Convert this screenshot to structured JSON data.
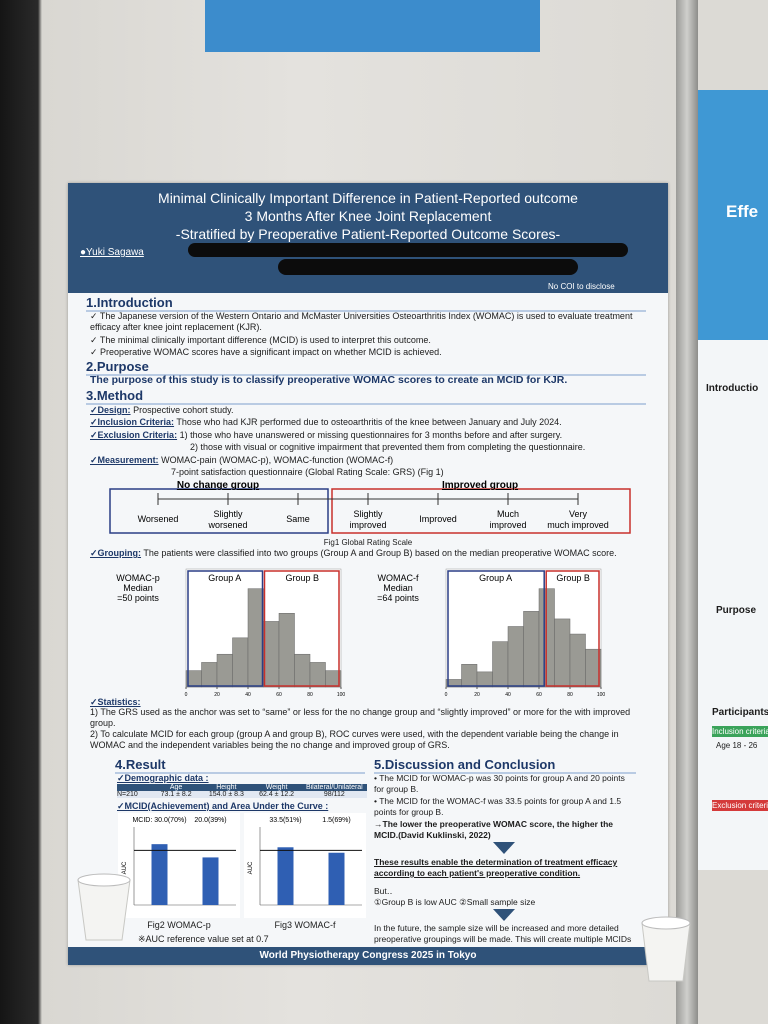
{
  "poster": {
    "title": [
      "Minimal Clinically Important Difference in Patient-Reported outcome",
      "3 Months After Knee Joint Replacement",
      "-Stratified by Preoperative Patient-Reported Outcome Scores-"
    ],
    "author": "●Yuki Sagawa",
    "coi": "No COI to disclose",
    "introduction": {
      "heading": "1.Introduction",
      "items": [
        "The Japanese version of the Western Ontario and McMaster Universities Osteoarthritis Index (WOMAC) is used to evaluate treatment efficacy after knee joint replacement (KJR).",
        "The minimal clinically important difference (MCID) is used to interpret this outcome.",
        "Preoperative WOMAC scores have a significant impact on whether MCID is achieved."
      ]
    },
    "purpose": {
      "heading": "2.Purpose",
      "text": "The purpose of this study is to classify preoperative WOMAC scores to create an MCID for KJR."
    },
    "method": {
      "heading": "3.Method",
      "design": {
        "label": "✓Design:",
        "text": "Prospective cohort study."
      },
      "inclusion": {
        "label": "✓Inclusion Criteria:",
        "text": "Those who had KJR performed due to osteoarthritis of the knee between January and July 2024."
      },
      "exclusion": {
        "label": "✓Exclusion Criteria:",
        "lines": [
          "1) those who have unanswered or missing questionnaires for 3 months before and after surgery.",
          "2) those with visual or cognitive impairment that prevented them from completing the questionnaire."
        ]
      },
      "measurement": {
        "label": "✓Measurement:",
        "lines": [
          "WOMAC-pain (WOMAC-p), WOMAC-function (WOMAC-f)",
          "7-point satisfaction questionnaire (Global Rating Scale: GRS) (Fig 1)"
        ]
      },
      "grs": {
        "groups": [
          "No change group",
          "Improved group"
        ],
        "levels": [
          "Worsened",
          "Slightly worsened",
          "Same",
          "Slightly improved",
          "Improved",
          "Much improved",
          "Very much improved"
        ],
        "caption": "Fig1 Global Rating Scale"
      },
      "grouping": {
        "label": "✓Grouping:",
        "text": "The patients were classified into two groups (Group A and Group B) based on the median preoperative WOMAC score."
      },
      "histograms": [
        {
          "type": "histogram",
          "label": [
            "WOMAC-p",
            "Median",
            "=50 points"
          ],
          "groups": [
            "Group A",
            "Group B"
          ],
          "median": 50,
          "bins": [
            0,
            10,
            20,
            30,
            40,
            50,
            60,
            70,
            80,
            90,
            100
          ],
          "counts": [
            2,
            3,
            4,
            6,
            12,
            8,
            9,
            4,
            3,
            2
          ],
          "xticks": [
            0,
            20,
            40,
            60,
            80,
            100
          ],
          "colors": {
            "bar": "#9a9a94",
            "a": "#2b3f86",
            "b": "#c8302c"
          }
        },
        {
          "type": "histogram",
          "label": [
            "WOMAC-f",
            "Median",
            "=64 points"
          ],
          "groups": [
            "Group A",
            "Group B"
          ],
          "median": 64,
          "bins": [
            0,
            10,
            20,
            30,
            40,
            50,
            60,
            70,
            80,
            90,
            100
          ],
          "counts": [
            1,
            3,
            2,
            6,
            8,
            10,
            13,
            9,
            7,
            5
          ],
          "xticks": [
            0,
            20,
            40,
            60,
            80,
            100
          ],
          "colors": {
            "bar": "#9a9a94",
            "a": "#2b3f86",
            "b": "#c8302c"
          }
        }
      ],
      "statistics": {
        "label": "✓Statistics:",
        "items": [
          "1) The GRS used as the anchor was set to “same” or less for the no change group and “slightly improved” or more for the with improved group.",
          "2) To calculate MCID for each group (group A and group B), ROC curves were used, with the dependent variable being the change in WOMAC and the independent variables being the no change and improved group of GRS."
        ]
      }
    },
    "result": {
      "heading": "4.Result",
      "demographic_label": "✓Demographic data :",
      "table": {
        "header": [
          "Age",
          "Height",
          "Weight",
          "Bilateral/Unilateral"
        ],
        "row": [
          "N=210",
          "73.1 ± 8.2",
          "154.0 ± 8.3",
          "62.4 ± 12.2",
          "98/112"
        ]
      },
      "mcid_label": "✓MCID(Achievement) and Area Under the Curve :",
      "charts": [
        {
          "type": "bar",
          "ylabel": "AUC",
          "annotations": [
            "MCID: 30.0(70%)",
            "20.0(39%)"
          ],
          "values": [
            0.78,
            0.61
          ],
          "ylim": [
            0,
            1
          ],
          "reference": 0.7,
          "color": "#2f5fb3",
          "caption": "Fig2 WOMAC-p"
        },
        {
          "type": "bar",
          "ylabel": "AUC",
          "annotations": [
            "33.5(51%)",
            "1.5(69%)"
          ],
          "values": [
            0.74,
            0.67
          ],
          "ylim": [
            0,
            1
          ],
          "reference": 0.7,
          "color": "#2f5fb3",
          "caption": "Fig3 WOMAC-f"
        }
      ],
      "note": "※AUC reference value set at 0.7"
    },
    "discussion": {
      "heading": "5.Discussion and Conclusion",
      "items": [
        "The MCID for WOMAC-p was 30 points for group A and 20 points for group B.",
        "The MCID for the WOMAC-f was 33.5 points for group A and 1.5 points for group B."
      ],
      "arrow": "→The lower the preoperative WOMAC score, the higher the MCID.(David Kuklinski, 2022)",
      "conclusion": "These results enable the determination of treatment efficacy according to each patient's preoperative condition.",
      "but": "But‥",
      "limits": "①Group B is low AUC ②Small sample size",
      "future": "In the future, the sample size will be increased and more detailed preoperative groupings will be made. This will create multiple MCIDs that take into account preoperative scores."
    },
    "footer": "World Physiotherapy Congress 2025 in Tokyo"
  },
  "right_poster": {
    "title": "Effe",
    "introduction": "Introductio",
    "purpose": "Purpose",
    "participants": "Participants",
    "inclusion": "Inclusion criteria",
    "inclusion_items": [
      "Age 18 - 26"
    ],
    "exclusion": "Exclusion criteria"
  }
}
